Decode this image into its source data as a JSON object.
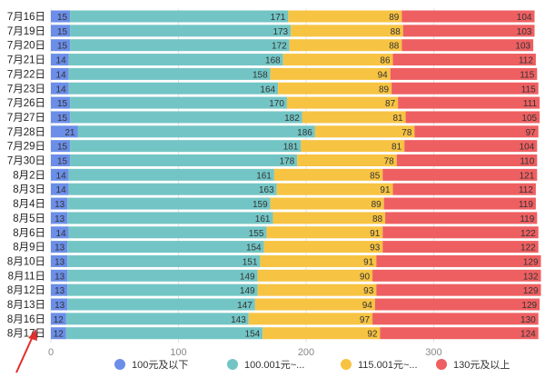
{
  "chart_data": {
    "type": "bar",
    "orientation": "horizontal",
    "stacked": true,
    "categories": [
      "7月16日",
      "7月19日",
      "7月20日",
      "7月21日",
      "7月22日",
      "7月23日",
      "7月26日",
      "7月27日",
      "7月28日",
      "7月29日",
      "7月30日",
      "8月2日",
      "8月3日",
      "8月4日",
      "8月5日",
      "8月6日",
      "8月9日",
      "8月10日",
      "8月11日",
      "8月12日",
      "8月13日",
      "8月16日",
      "8月17日"
    ],
    "series": [
      {
        "name": "100元及以下",
        "color": "#6b8ee8",
        "values": [
          15,
          15,
          15,
          14,
          14,
          14,
          15,
          15,
          21,
          15,
          15,
          14,
          14,
          13,
          13,
          14,
          13,
          13,
          13,
          13,
          13,
          12,
          12
        ]
      },
      {
        "name": "100.001元~...",
        "color": "#73c5c5",
        "values": [
          171,
          173,
          172,
          168,
          158,
          164,
          170,
          182,
          186,
          181,
          178,
          161,
          163,
          159,
          161,
          155,
          154,
          151,
          149,
          149,
          147,
          143,
          154
        ]
      },
      {
        "name": "115.001元~...",
        "color": "#f7c342",
        "values": [
          89,
          88,
          88,
          86,
          94,
          89,
          87,
          81,
          78,
          81,
          78,
          85,
          91,
          89,
          88,
          91,
          93,
          91,
          90,
          93,
          94,
          97,
          92
        ]
      },
      {
        "name": "130元及以上",
        "color": "#ee5f61",
        "values": [
          104,
          103,
          103,
          112,
          115,
          115,
          111,
          105,
          97,
          104,
          110,
          121,
          112,
          119,
          119,
          122,
          122,
          129,
          132,
          129,
          129,
          130,
          124
        ]
      }
    ],
    "x_ticks": [
      "0",
      "100",
      "200",
      "300"
    ],
    "xlim": [
      0,
      380
    ],
    "grid": true,
    "legend_position": "bottom"
  }
}
